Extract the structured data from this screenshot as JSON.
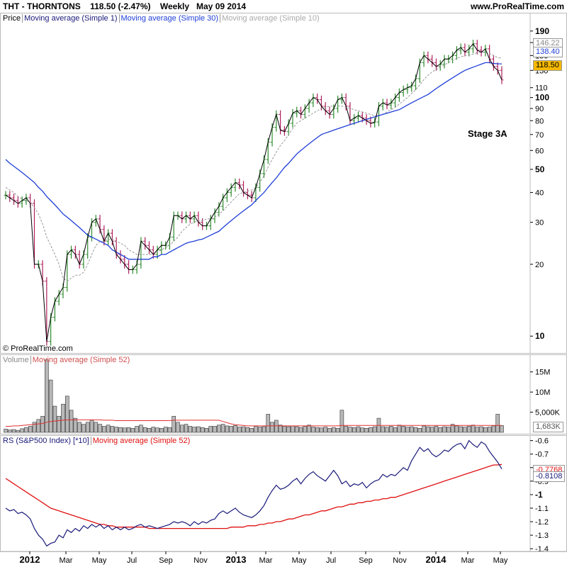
{
  "header": {
    "symbol": "THT - THORNTONS",
    "last": "118.50 (-2.47%)",
    "period": "Weekly",
    "date": "May 09 2014",
    "site": "www.ProRealTime.com"
  },
  "price_panel": {
    "legend": [
      "Price",
      "Moving average (Simple 1)",
      "Moving average (Simple 30)",
      "Moving average (Simple 10)"
    ],
    "copyright": "© ProRealTime.com",
    "annotation": "Stage 3A",
    "badges": {
      "ma10": "146.22",
      "ma30": "138.40",
      "last": "118.50"
    }
  },
  "volume_panel": {
    "legend": [
      "Volume",
      "Moving average (Simple 52)"
    ],
    "badge": "1,683K"
  },
  "rs_panel": {
    "legend": [
      "RS (S&P500 Index) [*10]",
      "Moving average (Simple 52)"
    ],
    "badges": {
      "ma": "-0.7768",
      "rs": "-0.8108"
    }
  },
  "colors": {
    "up": "#2e8b2e",
    "down": "#b0205e",
    "ma1": "#000000",
    "ma30": "#1f3fd8",
    "ma10": "#999999",
    "rs": "#1a1a7a",
    "rsma": "#e01010",
    "volma": "#e03030",
    "lastbadge": "#f5b800"
  },
  "chart_data": {
    "type": "line",
    "x_labels": [
      "2012",
      "Mar",
      "May",
      "Jul",
      "Sep",
      "Nov",
      "2013",
      "Mar",
      "May",
      "Jul",
      "Sep",
      "Nov",
      "2014",
      "Mar",
      "May"
    ],
    "price": {
      "scale": "log",
      "ylim": [
        8.5,
        195
      ],
      "ticks": [
        10,
        20,
        30,
        40,
        50,
        60,
        70,
        80,
        90,
        100,
        110,
        130,
        150,
        170,
        190
      ],
      "bold_ticks": [
        10,
        50,
        100,
        190
      ],
      "close": [
        39,
        38,
        37,
        36,
        37,
        38,
        36,
        20,
        20,
        17,
        9.5,
        12,
        14,
        15,
        16,
        22,
        23,
        22,
        20,
        22,
        26,
        30,
        31,
        28,
        25,
        27,
        25,
        22,
        21,
        20,
        19,
        19,
        20,
        25,
        24,
        23,
        22,
        23,
        24,
        24,
        26,
        32,
        32,
        31,
        32,
        31,
        32,
        30,
        29,
        29,
        31,
        33,
        35,
        38,
        40,
        42,
        44,
        43,
        40,
        39,
        38,
        42,
        48,
        55,
        65,
        75,
        85,
        73,
        72,
        78,
        86,
        88,
        85,
        90,
        95,
        100,
        98,
        92,
        88,
        85,
        90,
        98,
        100,
        92,
        80,
        82,
        84,
        82,
        80,
        78,
        79,
        92,
        95,
        93,
        95,
        100,
        105,
        108,
        110,
        112,
        120,
        140,
        150,
        145,
        140,
        135,
        138,
        145,
        145,
        150,
        158,
        162,
        155,
        160,
        168,
        158,
        155,
        160,
        145,
        135,
        130,
        118.5
      ],
      "ma10": [
        42,
        41,
        40,
        38.5,
        37.5,
        37,
        36.5,
        34.5,
        32.5,
        29.5,
        26,
        24,
        22,
        20,
        17.5,
        17,
        17.5,
        18,
        18,
        18.5,
        20,
        22,
        24,
        25,
        25,
        25.5,
        25.5,
        25,
        24.5,
        24,
        23,
        22.5,
        22,
        22,
        22,
        22,
        22,
        22.5,
        23,
        23.5,
        24,
        25,
        26,
        27.5,
        28.5,
        29.5,
        30,
        30.5,
        30.5,
        31,
        31,
        31.5,
        32.5,
        33.5,
        35,
        36.5,
        38,
        39.5,
        40,
        40.5,
        41,
        42,
        44,
        47,
        51,
        55,
        59,
        63,
        66,
        70,
        74,
        78,
        80,
        82,
        84,
        86,
        88,
        90,
        91,
        92,
        92,
        92,
        92,
        91,
        90,
        89,
        88,
        87,
        86,
        85,
        84,
        84,
        85,
        87,
        89,
        91,
        94,
        97,
        100,
        104,
        108,
        113,
        119,
        124,
        128,
        131,
        134,
        137,
        140,
        143,
        146,
        148,
        150,
        151,
        152,
        154,
        155,
        155,
        153,
        150,
        147,
        146.22
      ],
      "ma30": [
        55,
        53,
        51.5,
        50,
        48.5,
        47,
        45.5,
        44,
        42,
        40.5,
        38.5,
        37,
        35.5,
        34,
        32.5,
        31.5,
        30.5,
        29.5,
        28.5,
        27.5,
        26.5,
        26,
        25.5,
        25,
        24.5,
        24,
        23,
        22.5,
        22,
        21.5,
        21,
        21,
        21,
        21,
        21,
        21,
        21.5,
        21.5,
        22,
        22,
        22.5,
        23,
        23.5,
        24,
        24.5,
        24.8,
        25,
        25.3,
        25.5,
        26,
        26.5,
        27,
        27.5,
        28.5,
        29.5,
        30.5,
        31.5,
        32.5,
        33.5,
        34.5,
        35.5,
        37,
        38.5,
        40,
        42,
        44,
        46,
        48.5,
        51,
        53,
        55.5,
        58,
        60,
        62,
        64,
        66,
        68,
        70,
        71,
        72,
        73,
        74,
        75,
        76,
        77,
        78,
        79,
        80,
        81,
        82,
        83,
        84,
        85,
        86,
        87,
        88,
        89,
        91,
        93,
        95,
        97,
        99,
        101,
        103,
        106,
        109,
        112,
        115,
        118,
        121,
        124,
        127,
        130,
        132,
        134,
        136,
        138,
        140,
        140,
        139,
        138.5,
        138.4
      ]
    },
    "volume": {
      "ylim": [
        0,
        19000000
      ],
      "ticks": [
        "15M",
        "10M",
        "5,000K"
      ],
      "tick_values": [
        15000000,
        10000000,
        5000000
      ],
      "values": [
        0.8,
        0.6,
        0.7,
        0.5,
        0.9,
        1.2,
        1.5,
        2.5,
        3.2,
        4.0,
        18.0,
        13.0,
        6.5,
        4.0,
        7.0,
        9.0,
        5.5,
        3.5,
        2.5,
        2.0,
        2.5,
        3.0,
        2.5,
        2.0,
        1.5,
        1.8,
        1.5,
        1.3,
        1.2,
        1.1,
        1.2,
        1.0,
        1.5,
        1.8,
        1.2,
        1.0,
        1.3,
        1.1,
        1.0,
        1.3,
        1.2,
        4.0,
        2.5,
        1.8,
        2.0,
        1.5,
        1.3,
        1.4,
        1.2,
        1.0,
        1.5,
        1.5,
        1.8,
        2.0,
        1.6,
        1.5,
        1.7,
        1.3,
        1.4,
        1.2,
        1.0,
        1.5,
        1.3,
        1.4,
        4.5,
        2.5,
        3.0,
        1.8,
        1.5,
        1.4,
        1.6,
        1.4,
        1.2,
        1.5,
        1.8,
        1.3,
        1.2,
        1.1,
        1.3,
        1.0,
        1.2,
        1.0,
        5.5,
        1.5,
        1.3,
        1.2,
        1.4,
        1.1,
        1.0,
        1.2,
        1.4,
        3.5,
        1.4,
        1.3,
        1.5,
        1.2,
        1.8,
        1.5,
        1.3,
        1.4,
        1.2,
        1.0,
        1.6,
        1.4,
        1.3,
        1.5,
        1.2,
        1.4,
        1.3,
        2.0,
        1.6,
        1.4,
        1.3,
        1.5,
        1.8,
        1.3,
        1.4,
        1.2,
        1.3,
        1.6,
        4.5,
        1.683
      ],
      "ma52": [
        1.5,
        1.5,
        1.6,
        1.6,
        1.7,
        1.8,
        1.9,
        2.0,
        2.1,
        2.2,
        2.5,
        2.7,
        2.8,
        2.9,
        3.0,
        3.1,
        3.1,
        3.1,
        3.1,
        3.1,
        3.1,
        3.1,
        3.1,
        3.1,
        3.0,
        3.0,
        3.0,
        2.9,
        2.9,
        2.9,
        2.9,
        2.9,
        2.9,
        2.9,
        2.9,
        2.9,
        2.9,
        2.9,
        2.9,
        2.9,
        2.9,
        3.0,
        3.0,
        3.0,
        3.0,
        3.0,
        3.0,
        3.0,
        3.0,
        3.0,
        3.0,
        3.0,
        3.0,
        2.7,
        2.4,
        2.1,
        1.9,
        1.8,
        1.7,
        1.6,
        1.6,
        1.6,
        1.6,
        1.6,
        1.6,
        1.6,
        1.6,
        1.6,
        1.6,
        1.6,
        1.6,
        1.6,
        1.6,
        1.6,
        1.6,
        1.6,
        1.6,
        1.6,
        1.6,
        1.6,
        1.6,
        1.6,
        1.7,
        1.7,
        1.7,
        1.7,
        1.7,
        1.7,
        1.7,
        1.7,
        1.7,
        1.7,
        1.7,
        1.7,
        1.7,
        1.7,
        1.7,
        1.7,
        1.7,
        1.7,
        1.7,
        1.7,
        1.7,
        1.7,
        1.7,
        1.7,
        1.7,
        1.7,
        1.7,
        1.7,
        1.7,
        1.7,
        1.7,
        1.7,
        1.7,
        1.7,
        1.7,
        1.7,
        1.7,
        1.7,
        1.7,
        1.7
      ]
    },
    "rs": {
      "ylim": [
        -1.42,
        -0.56
      ],
      "ticks": [
        -0.6,
        -0.7,
        -0.8,
        -0.9,
        -1,
        -1.1,
        -1.2,
        -1.3,
        -1.4
      ],
      "bold_ticks": [
        -1
      ],
      "values": [
        -1.1,
        -1.12,
        -1.11,
        -1.14,
        -1.13,
        -1.15,
        -1.18,
        -1.25,
        -1.3,
        -1.33,
        -1.38,
        -1.36,
        -1.35,
        -1.3,
        -1.32,
        -1.26,
        -1.28,
        -1.25,
        -1.27,
        -1.23,
        -1.25,
        -1.22,
        -1.24,
        -1.22,
        -1.25,
        -1.23,
        -1.26,
        -1.24,
        -1.26,
        -1.24,
        -1.26,
        -1.25,
        -1.23,
        -1.22,
        -1.24,
        -1.23,
        -1.24,
        -1.25,
        -1.24,
        -1.23,
        -1.22,
        -1.2,
        -1.21,
        -1.2,
        -1.21,
        -1.23,
        -1.2,
        -1.22,
        -1.2,
        -1.21,
        -1.19,
        -1.18,
        -1.14,
        -1.12,
        -1.14,
        -1.12,
        -1.1,
        -1.13,
        -1.15,
        -1.16,
        -1.17,
        -1.15,
        -1.12,
        -1.08,
        -1.02,
        -0.97,
        -0.93,
        -0.96,
        -0.95,
        -0.93,
        -0.9,
        -0.88,
        -0.92,
        -0.88,
        -0.85,
        -0.83,
        -0.86,
        -0.88,
        -0.9,
        -0.86,
        -0.82,
        -0.86,
        -0.92,
        -0.9,
        -0.94,
        -0.92,
        -0.93,
        -0.91,
        -0.95,
        -0.92,
        -0.9,
        -0.89,
        -0.85,
        -0.87,
        -0.85,
        -0.86,
        -0.83,
        -0.8,
        -0.82,
        -0.75,
        -0.7,
        -0.65,
        -0.68,
        -0.66,
        -0.7,
        -0.72,
        -0.7,
        -0.67,
        -0.68,
        -0.65,
        -0.63,
        -0.62,
        -0.66,
        -0.6,
        -0.63,
        -0.65,
        -0.61,
        -0.63,
        -0.68,
        -0.72,
        -0.76,
        -0.81
      ],
      "ma52": [
        -0.88,
        -0.9,
        -0.92,
        -0.94,
        -0.96,
        -0.98,
        -1.0,
        -1.02,
        -1.04,
        -1.06,
        -1.08,
        -1.1,
        -1.11,
        -1.12,
        -1.13,
        -1.14,
        -1.15,
        -1.16,
        -1.17,
        -1.18,
        -1.19,
        -1.2,
        -1.21,
        -1.22,
        -1.22,
        -1.23,
        -1.23,
        -1.24,
        -1.24,
        -1.24,
        -1.24,
        -1.24,
        -1.24,
        -1.24,
        -1.24,
        -1.25,
        -1.25,
        -1.25,
        -1.25,
        -1.25,
        -1.25,
        -1.25,
        -1.25,
        -1.25,
        -1.25,
        -1.25,
        -1.25,
        -1.25,
        -1.25,
        -1.25,
        -1.25,
        -1.25,
        -1.25,
        -1.25,
        -1.25,
        -1.24,
        -1.24,
        -1.24,
        -1.24,
        -1.23,
        -1.23,
        -1.23,
        -1.22,
        -1.22,
        -1.21,
        -1.21,
        -1.2,
        -1.2,
        -1.19,
        -1.18,
        -1.18,
        -1.17,
        -1.16,
        -1.15,
        -1.15,
        -1.14,
        -1.13,
        -1.12,
        -1.12,
        -1.11,
        -1.1,
        -1.09,
        -1.09,
        -1.08,
        -1.07,
        -1.07,
        -1.06,
        -1.06,
        -1.05,
        -1.05,
        -1.04,
        -1.04,
        -1.03,
        -1.03,
        -1.02,
        -1.02,
        -1.01,
        -1.0,
        -0.99,
        -0.98,
        -0.97,
        -0.96,
        -0.95,
        -0.94,
        -0.93,
        -0.92,
        -0.91,
        -0.9,
        -0.89,
        -0.88,
        -0.87,
        -0.86,
        -0.85,
        -0.84,
        -0.83,
        -0.82,
        -0.81,
        -0.8,
        -0.79,
        -0.78,
        -0.78,
        -0.7768
      ]
    }
  }
}
